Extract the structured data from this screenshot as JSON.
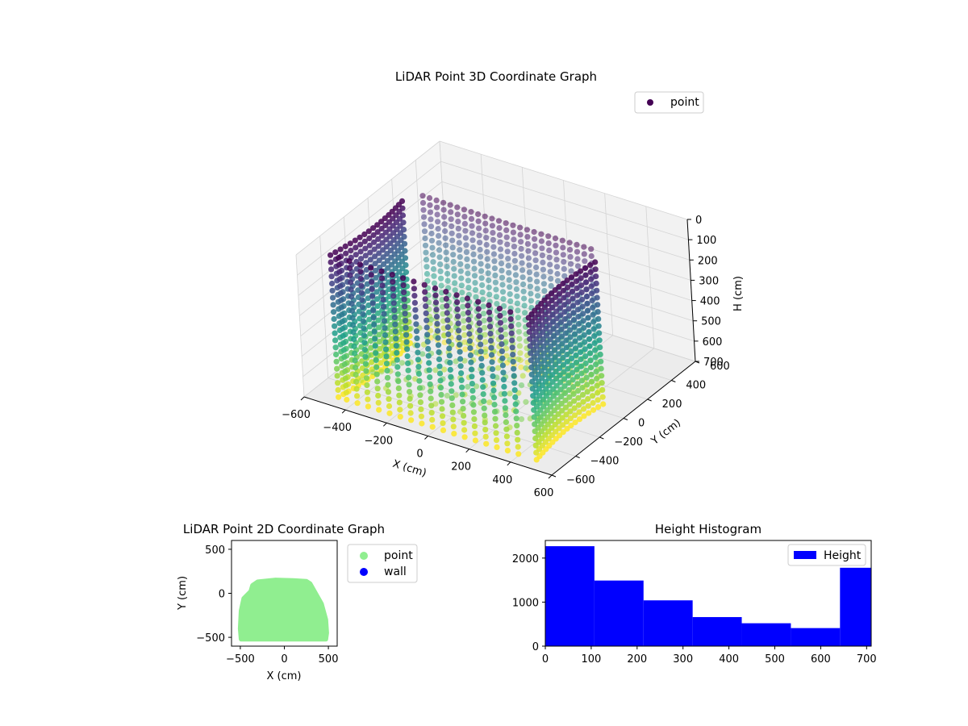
{
  "chart_data": [
    {
      "type": "scatter",
      "projection": "3d",
      "title": "LiDAR Point 3D Coordinate Graph",
      "xlabel": "X (cm)",
      "ylabel": "Y (cm)",
      "zlabel": "H (cm)",
      "xlim": [
        -600,
        600
      ],
      "ylim": [
        -600,
        600
      ],
      "zlim": [
        700,
        0
      ],
      "xticks": [
        "−600",
        "−400",
        "−200",
        "0",
        "200",
        "400",
        "600"
      ],
      "yticks": [
        "−600",
        "−400",
        "−200",
        "0",
        "200",
        "400",
        "600"
      ],
      "zticks": [
        "0",
        "100",
        "200",
        "300",
        "400",
        "500",
        "600",
        "700"
      ],
      "series": [
        {
          "name": "point",
          "colormap": "viridis",
          "color_by": "height"
        }
      ],
      "wall_profile": {
        "shape": "rounded rectangle, open toward viewer",
        "x_range": [
          -480,
          480
        ],
        "y_range": [
          -520,
          150
        ],
        "h_range": [
          0,
          700
        ]
      },
      "legend_position": "upper right",
      "legend_color": "#440154",
      "grid": true
    },
    {
      "type": "scatter",
      "title": "LiDAR Point 2D Coordinate Graph",
      "xlabel": "X (cm)",
      "ylabel": "Y (cm)",
      "xlim": [
        -600,
        600
      ],
      "ylim": [
        -600,
        600
      ],
      "xticks": [
        "−500",
        "0",
        "500"
      ],
      "yticks": [
        "500",
        "0",
        "−500"
      ],
      "series": [
        {
          "name": "point",
          "color": "#90ee90"
        },
        {
          "name": "wall",
          "color": "#0000ff"
        }
      ],
      "footprint": [
        [
          -490,
          -520
        ],
        [
          -500,
          -400
        ],
        [
          -490,
          -200
        ],
        [
          -460,
          -60
        ],
        [
          -380,
          20
        ],
        [
          -360,
          90
        ],
        [
          -300,
          130
        ],
        [
          -100,
          150
        ],
        [
          100,
          145
        ],
        [
          250,
          135
        ],
        [
          290,
          110
        ],
        [
          330,
          40
        ],
        [
          420,
          -120
        ],
        [
          470,
          -300
        ],
        [
          480,
          -450
        ],
        [
          470,
          -520
        ]
      ],
      "legend_position": "outside right",
      "grid": false
    },
    {
      "type": "bar",
      "title": "Height Histogram",
      "xlim": [
        0,
        710
      ],
      "ylim": [
        0,
        2400
      ],
      "xticks": [
        "0",
        "100",
        "200",
        "300",
        "400",
        "500",
        "600",
        "700"
      ],
      "yticks": [
        "0",
        "1000",
        "2000"
      ],
      "bin_edges": [
        0,
        107,
        214,
        321,
        428,
        535,
        642,
        710
      ],
      "values": [
        2270,
        1490,
        1040,
        660,
        520,
        410,
        1780
      ],
      "series": [
        {
          "name": "Height",
          "color": "#0000ff"
        }
      ],
      "legend_position": "upper right",
      "grid": false
    }
  ]
}
